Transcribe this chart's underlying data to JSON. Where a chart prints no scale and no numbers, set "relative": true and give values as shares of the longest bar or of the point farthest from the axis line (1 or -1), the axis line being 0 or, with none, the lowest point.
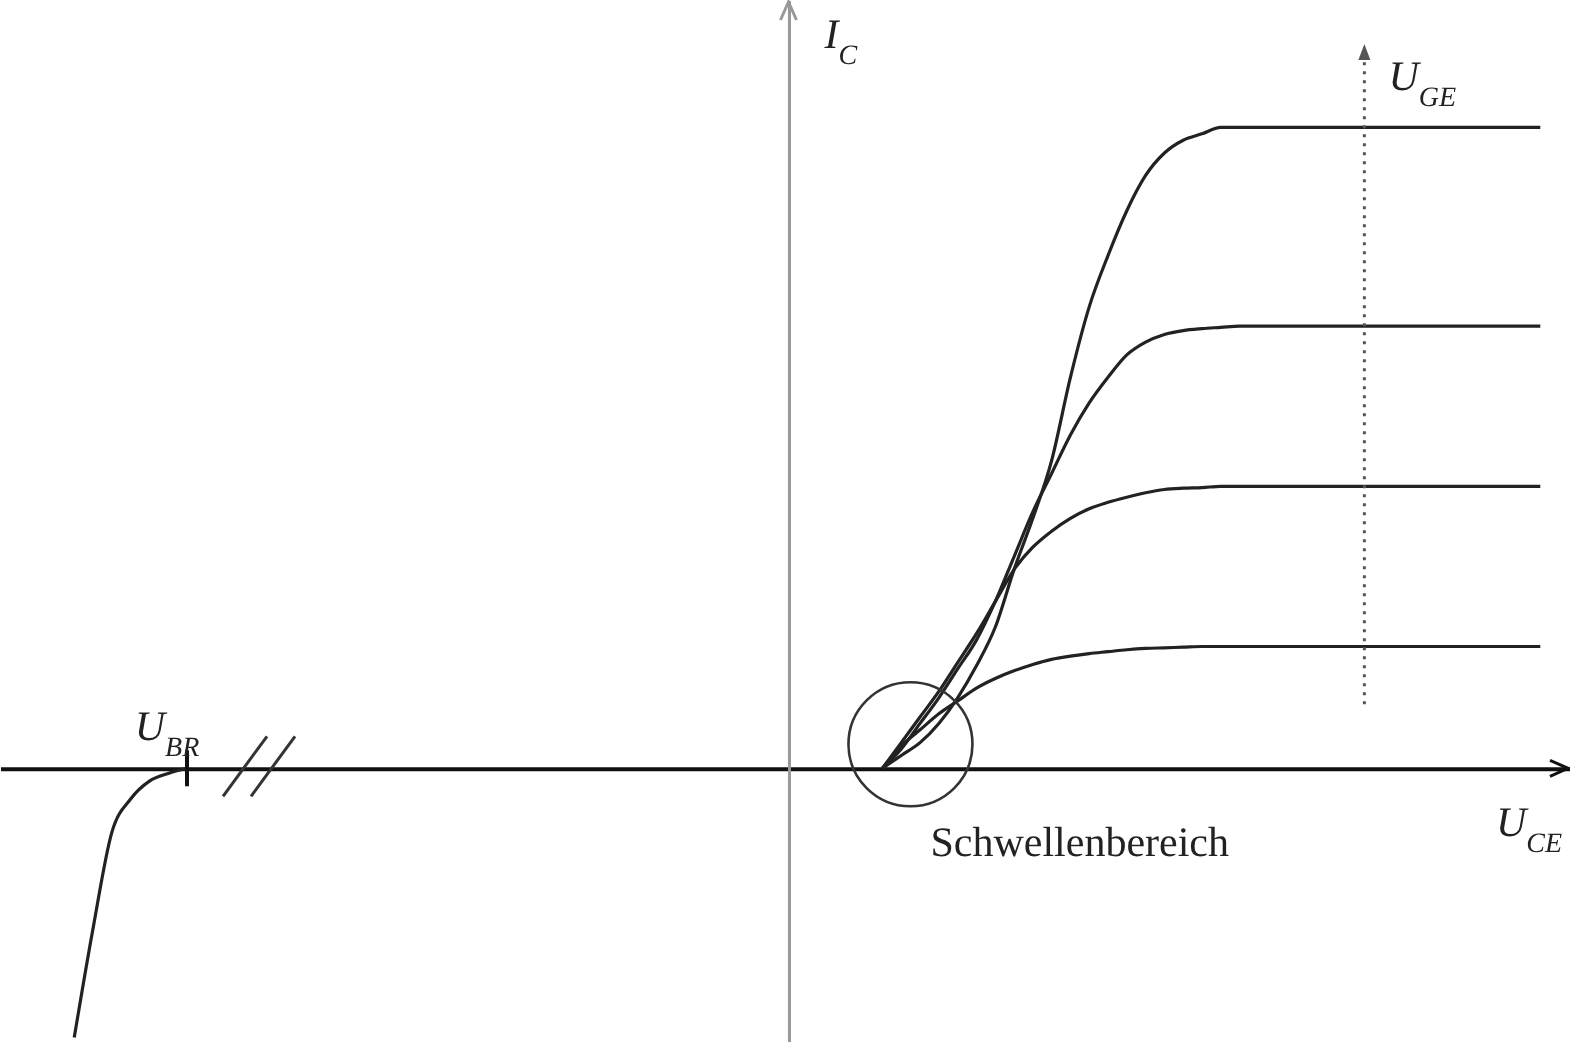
{
  "chart_data": {
    "type": "line",
    "relative": true,
    "xlabel": "U$_{CE}$",
    "ylabel": "I$_{C}$",
    "annotations": [
      "U$_{BR}$",
      "Schwellenbereich",
      "U$_{GE}$"
    ],
    "categories": [
      null,
      null,
      null,
      null,
      null,
      null,
      null,
      null,
      null,
      null,
      null,
      null,
      null,
      null,
      null,
      null,
      null,
      null,
      null,
      null,
      null,
      null,
      null,
      null,
      null,
      null,
      null,
      null,
      null,
      null,
      null,
      null,
      null,
      null,
      null,
      null,
      null,
      null,
      null,
      null,
      null,
      null,
      null,
      null,
      null,
      null,
      null,
      null,
      null,
      null,
      null,
      null,
      null,
      null,
      null,
      null,
      null,
      null,
      null,
      null,
      null,
      null,
      null,
      null,
      null,
      null,
      null,
      null,
      null,
      null,
      null,
      null,
      null,
      null,
      null,
      null,
      null,
      null,
      null
    ],
    "series": [
      {
        "color": "#222222",
        "values": [
          null,
          null,
          null,
          null,
          null,
          null,
          null,
          null,
          null,
          null,
          null,
          null,
          null,
          null,
          null,
          null,
          null,
          null,
          null,
          null,
          null,
          null,
          null,
          null,
          null,
          null,
          null,
          null,
          null,
          null,
          null,
          null,
          null,
          null,
          null,
          null,
          null,
          null,
          null,
          null,
          null,
          null,
          null,
          0,
          0.02,
          0.04,
          0.07,
          0.11,
          0.16,
          0.22,
          0.31,
          0.39,
          0.48,
          0.61,
          0.72,
          0.8,
          0.87,
          0.925,
          0.96,
          0.98,
          0.99,
          1,
          1,
          1,
          1,
          1,
          1,
          1,
          1,
          1,
          1,
          1,
          1,
          1,
          1,
          1,
          1,
          1,
          1
        ]
      },
      {
        "color": "#222222",
        "values": [
          null,
          null,
          null,
          null,
          null,
          null,
          null,
          null,
          null,
          null,
          null,
          null,
          null,
          null,
          null,
          null,
          null,
          null,
          null,
          null,
          null,
          null,
          null,
          null,
          null,
          null,
          null,
          null,
          null,
          null,
          null,
          null,
          null,
          null,
          null,
          null,
          null,
          null,
          null,
          null,
          null,
          null,
          null,
          0,
          0.03,
          0.07,
          0.11,
          0.155,
          0.2,
          0.26,
          0.33,
          0.4,
          0.46,
          0.52,
          0.57,
          0.61,
          0.645,
          0.665,
          0.677,
          0.683,
          0.686,
          0.688,
          0.69,
          0.69,
          0.69,
          0.69,
          0.69,
          0.69,
          0.69,
          0.69,
          0.69,
          0.69,
          0.69,
          0.69,
          0.69,
          0.69,
          0.69,
          0.69,
          0.69
        ]
      },
      {
        "color": "#222222",
        "values": [
          null,
          null,
          null,
          null,
          null,
          null,
          null,
          null,
          null,
          null,
          null,
          null,
          null,
          null,
          null,
          null,
          null,
          null,
          null,
          null,
          null,
          null,
          null,
          null,
          null,
          null,
          null,
          null,
          null,
          null,
          null,
          null,
          null,
          null,
          null,
          null,
          null,
          null,
          null,
          null,
          null,
          null,
          null,
          0,
          0.04,
          0.08,
          0.12,
          0.165,
          0.21,
          0.26,
          0.31,
          0.345,
          0.37,
          0.39,
          0.405,
          0.415,
          0.423,
          0.43,
          0.435,
          0.437,
          0.438,
          0.44,
          0.44,
          0.44,
          0.44,
          0.44,
          0.44,
          0.44,
          0.44,
          0.44,
          0.44,
          0.44,
          0.44,
          0.44,
          0.44,
          0.44,
          0.44,
          0.44,
          0.44
        ]
      },
      {
        "color": "#222222",
        "values": [
          null,
          null,
          null,
          null,
          null,
          null,
          null,
          null,
          null,
          null,
          null,
          null,
          null,
          null,
          null,
          null,
          null,
          null,
          null,
          null,
          null,
          null,
          null,
          null,
          null,
          null,
          null,
          null,
          null,
          null,
          null,
          null,
          null,
          null,
          null,
          null,
          null,
          null,
          null,
          null,
          null,
          null,
          null,
          0,
          0.035,
          0.06,
          0.085,
          0.105,
          0.125,
          0.14,
          0.152,
          0.162,
          0.17,
          0.175,
          0.179,
          0.182,
          0.185,
          0.187,
          0.188,
          0.189,
          0.19,
          0.19,
          0.19,
          0.19,
          0.19,
          0.19,
          0.19,
          0.19,
          0.19,
          0.19,
          0.19,
          0.19,
          0.19,
          0.19,
          0.19,
          0.19,
          0.19,
          0.19,
          0.19
        ]
      },
      {
        "color": "#222222",
        "values": [
          -0.42,
          -0.25,
          -0.1,
          -0.048,
          -0.02,
          -0.008,
          0,
          null,
          null,
          null,
          null,
          null,
          null,
          null,
          null,
          null,
          null,
          null,
          null,
          null,
          null,
          null,
          null,
          null,
          null,
          null,
          null,
          null,
          null,
          null,
          null,
          null,
          null,
          null,
          null,
          null,
          null,
          null,
          null,
          null,
          null,
          null,
          null,
          null,
          null,
          null,
          null,
          null,
          null,
          null,
          null,
          null,
          null,
          null,
          null,
          null,
          null,
          null,
          null,
          null,
          null,
          null,
          null,
          null,
          null,
          null,
          null,
          null,
          null,
          null,
          null,
          null,
          null,
          null,
          null,
          null,
          null,
          null,
          null
        ]
      }
    ]
  }
}
